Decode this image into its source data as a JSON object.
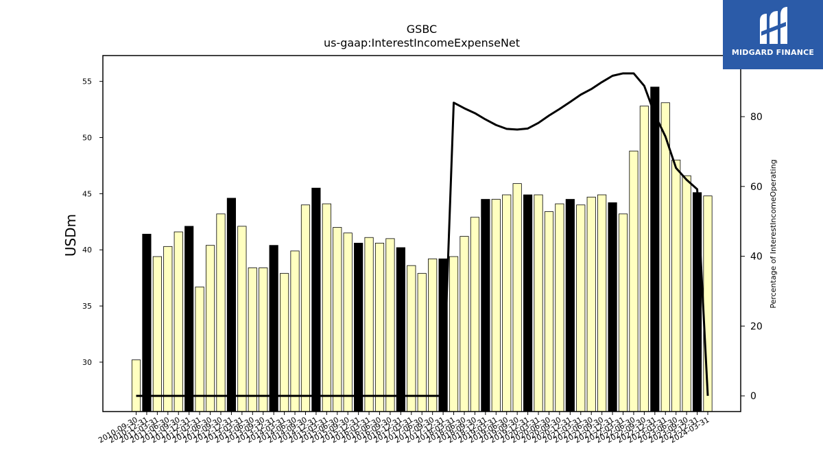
{
  "chart_data": {
    "type": "bar",
    "title": "GSBC",
    "subtitle": "us-gaap:InterestIncomeExpenseNet",
    "ylabel": "USDm",
    "y2label": "Percentage of InterestIncomeOperating",
    "ylim": [
      25.6,
      57.3
    ],
    "y2lim": [
      -4.5,
      97.5
    ],
    "yticks": [
      30,
      35,
      40,
      45,
      50,
      55
    ],
    "y2ticks": [
      0,
      20,
      40,
      60,
      80
    ],
    "categories": [
      "2010-09-30",
      "2010-12-31",
      "2011-03-31",
      "2011-06-30",
      "2011-09-30",
      "2011-12-31",
      "2012-03-31",
      "2012-06-30",
      "2012-09-30",
      "2012-12-31",
      "2013-03-31",
      "2013-06-30",
      "2013-09-30",
      "2013-12-31",
      "2014-03-31",
      "2014-06-30",
      "2014-09-30",
      "2014-12-31",
      "2015-03-31",
      "2015-06-30",
      "2015-09-30",
      "2015-12-31",
      "2016-03-31",
      "2016-06-30",
      "2016-09-30",
      "2016-12-31",
      "2017-03-31",
      "2017-06-30",
      "2017-09-30",
      "2017-12-31",
      "2018-03-31",
      "2018-06-30",
      "2018-09-30",
      "2018-12-31",
      "2019-03-31",
      "2019-06-30",
      "2019-09-30",
      "2019-12-31",
      "2020-03-31",
      "2020-06-30",
      "2020-09-30",
      "2020-12-31",
      "2021-03-31",
      "2021-06-30",
      "2021-09-30",
      "2021-12-31",
      "2022-03-31",
      "2022-06-30",
      "2022-09-30",
      "2022-12-31",
      "2023-03-31",
      "2023-06-30",
      "2023-09-30",
      "2023-12-31",
      "2024-03-31"
    ],
    "values": [
      30.2,
      41.4,
      39.4,
      40.3,
      41.6,
      42.1,
      36.7,
      40.4,
      43.2,
      44.6,
      42.1,
      38.4,
      38.4,
      40.4,
      37.9,
      39.9,
      44.0,
      45.5,
      44.1,
      42.0,
      41.5,
      40.6,
      41.1,
      40.6,
      41.0,
      40.2,
      38.6,
      37.9,
      39.2,
      39.2,
      39.4,
      41.2,
      42.9,
      44.5,
      44.5,
      44.9,
      45.9,
      44.9,
      44.9,
      43.4,
      44.1,
      44.5,
      44.0,
      44.7,
      44.9,
      44.2,
      43.2,
      48.8,
      52.8,
      54.5,
      53.1,
      48.0,
      46.6,
      45.1,
      44.8
    ],
    "dark_bars": [
      1,
      5,
      9,
      13,
      17,
      21,
      25,
      29,
      33,
      37,
      41,
      45,
      49,
      53
    ],
    "bar_colors": {
      "light": "#ffffc0",
      "dark": "#000000"
    },
    "line": {
      "name": "Percentage of InterestIncomeOperating",
      "values": [
        0,
        0,
        0,
        0,
        0,
        0,
        0,
        0,
        0,
        0,
        0,
        0,
        0,
        0,
        0,
        0,
        0,
        0,
        0,
        0,
        0,
        0,
        0,
        0,
        0,
        0,
        0,
        0,
        0,
        0,
        84,
        82.4,
        81,
        79.2,
        77.6,
        76.5,
        76.3,
        76.6,
        78.2,
        80.3,
        82.2,
        84.2,
        86.3,
        87.9,
        89.9,
        91.7,
        92.4,
        92.4,
        88.8,
        80.6,
        74.3,
        65.3,
        61.9,
        59.2,
        0
      ],
      "color": "#000000"
    }
  },
  "logo": {
    "text": "MIDGARD FINANCE"
  }
}
